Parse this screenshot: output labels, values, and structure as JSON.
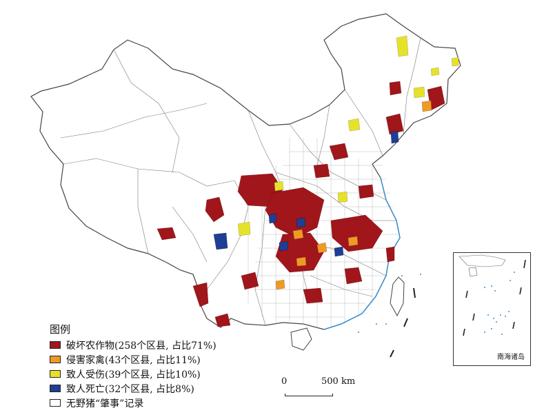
{
  "legend": {
    "title": "图例",
    "items": [
      {
        "label": "破坏农作物(258个区县, 占比71%)",
        "color": "#a0161b",
        "counties": 258,
        "percent": 71
      },
      {
        "label": "侵害家禽(43个区县, 占比11%)",
        "color": "#ef9a22",
        "counties": 43,
        "percent": 11
      },
      {
        "label": "致人受伤(39个区县, 占比10%)",
        "color": "#e6e22a",
        "counties": 39,
        "percent": 10
      },
      {
        "label": "致人死亡(32个区县, 占比8%)",
        "color": "#1f3e96",
        "counties": 32,
        "percent": 8
      },
      {
        "label": "无野猪“肇事”记录",
        "color": "#ffffff"
      }
    ]
  },
  "scale_bar": {
    "zero": "0",
    "length": "500 km"
  },
  "inset": {
    "label": "南海诸岛"
  },
  "colors": {
    "boundary": "#555555",
    "coastline": "#3a8fd0",
    "background": "#ffffff"
  }
}
